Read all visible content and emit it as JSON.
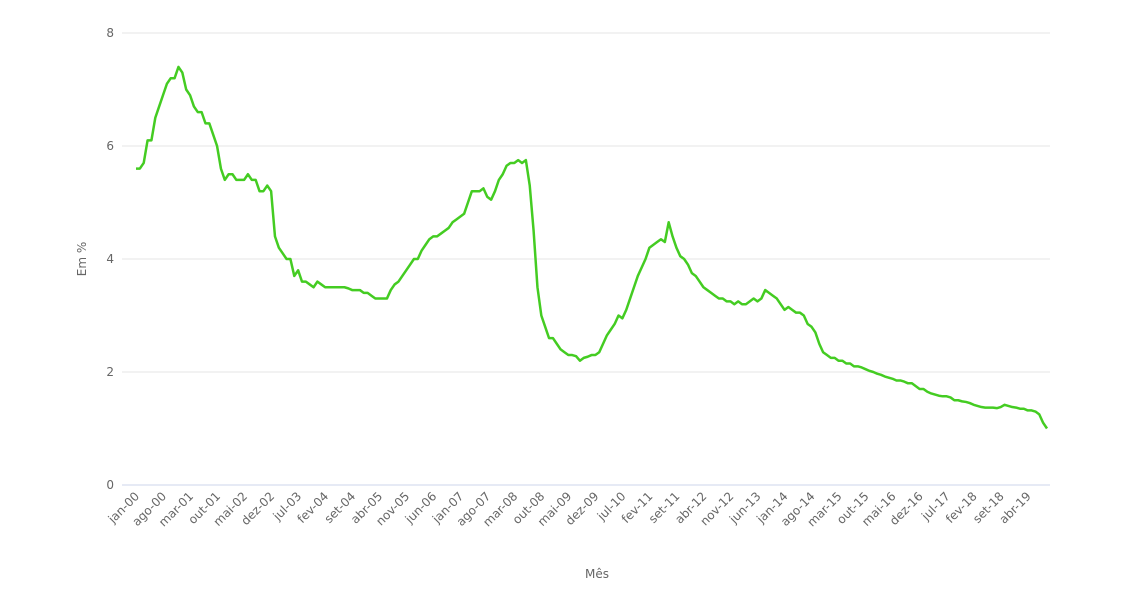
{
  "chart_data": {
    "type": "line",
    "x_label": "Mês",
    "y_label": "Em %",
    "categories": [
      "jan-00",
      null,
      null,
      null,
      null,
      null,
      null,
      "ago-00",
      null,
      null,
      null,
      null,
      null,
      null,
      "mar-01",
      null,
      null,
      null,
      null,
      null,
      null,
      "out-01",
      null,
      null,
      null,
      null,
      null,
      null,
      "mai-02",
      null,
      null,
      null,
      null,
      null,
      null,
      "dez-02",
      null,
      null,
      null,
      null,
      null,
      null,
      "jul-03",
      null,
      null,
      null,
      null,
      null,
      null,
      "fev-04",
      null,
      null,
      null,
      null,
      null,
      null,
      "set-04",
      null,
      null,
      null,
      null,
      null,
      null,
      "abr-05",
      null,
      null,
      null,
      null,
      null,
      null,
      "nov-05",
      null,
      null,
      null,
      null,
      null,
      null,
      "jun-06",
      null,
      null,
      null,
      null,
      null,
      null,
      "jan-07",
      null,
      null,
      null,
      null,
      null,
      null,
      "ago-07",
      null,
      null,
      null,
      null,
      null,
      null,
      "mar-08",
      null,
      null,
      null,
      null,
      null,
      null,
      "out-08",
      null,
      null,
      null,
      null,
      null,
      null,
      "mai-09",
      null,
      null,
      null,
      null,
      null,
      null,
      "dez-09",
      null,
      null,
      null,
      null,
      null,
      null,
      "jul-10",
      null,
      null,
      null,
      null,
      null,
      null,
      "fev-11",
      null,
      null,
      null,
      null,
      null,
      null,
      "set-11",
      null,
      null,
      null,
      null,
      null,
      null,
      "abr-12",
      null,
      null,
      null,
      null,
      null,
      null,
      "nov-12",
      null,
      null,
      null,
      null,
      null,
      null,
      "jun-13",
      null,
      null,
      null,
      null,
      null,
      null,
      "jan-14",
      null,
      null,
      null,
      null,
      null,
      null,
      "ago-14",
      null,
      null,
      null,
      null,
      null,
      null,
      "mar-15",
      null,
      null,
      null,
      null,
      null,
      null,
      "out-15",
      null,
      null,
      null,
      null,
      null,
      null,
      "mai-16",
      null,
      null,
      null,
      null,
      null,
      null,
      "dez-16",
      null,
      null,
      null,
      null,
      null,
      null,
      "jul-17",
      null,
      null,
      null,
      null,
      null,
      null,
      "fev-18",
      null,
      null,
      null,
      null,
      null,
      null,
      "set-18",
      null,
      null,
      null,
      null,
      null,
      null,
      "abr-19",
      null,
      null,
      null,
      null,
      null
    ],
    "values": [
      5.6,
      5.6,
      5.7,
      6.1,
      6.1,
      6.5,
      6.7,
      6.9,
      7.1,
      7.2,
      7.2,
      7.4,
      7.3,
      7.0,
      6.9,
      6.7,
      6.6,
      6.6,
      6.4,
      6.4,
      6.2,
      6.0,
      5.6,
      5.4,
      5.5,
      5.5,
      5.4,
      5.4,
      5.4,
      5.5,
      5.4,
      5.4,
      5.2,
      5.2,
      5.3,
      5.2,
      4.4,
      4.2,
      4.1,
      4.0,
      4.0,
      3.7,
      3.8,
      3.6,
      3.6,
      3.55,
      3.5,
      3.6,
      3.55,
      3.5,
      3.5,
      3.5,
      3.5,
      3.5,
      3.5,
      3.48,
      3.45,
      3.45,
      3.45,
      3.4,
      3.4,
      3.35,
      3.3,
      3.3,
      3.3,
      3.3,
      3.45,
      3.55,
      3.6,
      3.7,
      3.8,
      3.9,
      4.0,
      4.0,
      4.15,
      4.25,
      4.35,
      4.4,
      4.4,
      4.45,
      4.5,
      4.55,
      4.65,
      4.7,
      4.75,
      4.8,
      5.0,
      5.2,
      5.2,
      5.2,
      5.25,
      5.1,
      5.05,
      5.2,
      5.4,
      5.5,
      5.65,
      5.7,
      5.7,
      5.75,
      5.7,
      5.75,
      5.3,
      4.5,
      3.5,
      3.0,
      2.8,
      2.6,
      2.6,
      2.5,
      2.4,
      2.35,
      2.3,
      2.3,
      2.28,
      2.2,
      2.25,
      2.27,
      2.3,
      2.3,
      2.35,
      2.5,
      2.65,
      2.75,
      2.85,
      3.0,
      2.95,
      3.1,
      3.3,
      3.5,
      3.7,
      3.85,
      4.0,
      4.2,
      4.25,
      4.3,
      4.35,
      4.3,
      4.65,
      4.4,
      4.2,
      4.05,
      4.0,
      3.9,
      3.75,
      3.7,
      3.6,
      3.5,
      3.45,
      3.4,
      3.35,
      3.3,
      3.3,
      3.25,
      3.25,
      3.2,
      3.25,
      3.2,
      3.2,
      3.25,
      3.3,
      3.25,
      3.3,
      3.45,
      3.4,
      3.35,
      3.3,
      3.2,
      3.1,
      3.15,
      3.1,
      3.05,
      3.05,
      3.0,
      2.85,
      2.8,
      2.7,
      2.5,
      2.35,
      2.3,
      2.25,
      2.25,
      2.2,
      2.2,
      2.15,
      2.15,
      2.1,
      2.1,
      2.08,
      2.05,
      2.02,
      2.0,
      1.97,
      1.95,
      1.92,
      1.9,
      1.88,
      1.85,
      1.85,
      1.83,
      1.8,
      1.8,
      1.75,
      1.7,
      1.7,
      1.65,
      1.62,
      1.6,
      1.58,
      1.57,
      1.57,
      1.55,
      1.5,
      1.5,
      1.48,
      1.47,
      1.45,
      1.42,
      1.4,
      1.38,
      1.37,
      1.37,
      1.37,
      1.36,
      1.38,
      1.42,
      1.4,
      1.38,
      1.37,
      1.35,
      1.35,
      1.32,
      1.32,
      1.3,
      1.25,
      1.1,
      1.0
    ],
    "color": "#44cc22",
    "ylim": [
      0,
      8
    ],
    "yticks": [
      0,
      2,
      4,
      6,
      8
    ],
    "grid": true
  }
}
